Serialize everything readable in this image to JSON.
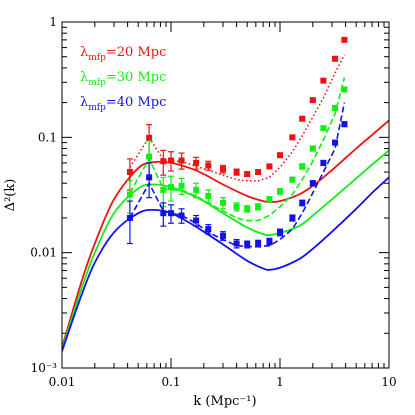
{
  "chart_data": {
    "type": "line",
    "xlabel": "k (Mpc⁻¹)",
    "ylabel": "Δ²(k)",
    "xscale": "log",
    "yscale": "log",
    "xlim": [
      0.01,
      10
    ],
    "ylim": [
      0.001,
      1
    ],
    "x_ticks": [
      "0.01",
      "0.1",
      "1",
      "10"
    ],
    "y_ticks": [
      "10⁻³",
      "0.01",
      "0.1",
      "1"
    ],
    "legend_position": "top-left",
    "series": [
      {
        "name": "λmfp=20 Mpc",
        "legend_main": "λ",
        "legend_sub": "mfp",
        "legend_tail": "=20 Mpc",
        "color": "#ee1111",
        "model_curve": {
          "x": [
            0.01,
            0.015,
            0.02,
            0.03,
            0.05,
            0.07,
            0.1,
            0.15,
            0.2,
            0.3,
            0.5,
            0.7,
            0.8,
            1,
            1.5,
            2,
            3,
            5,
            7,
            10
          ],
          "y": [
            0.0015,
            0.0055,
            0.012,
            0.029,
            0.054,
            0.061,
            0.06,
            0.054,
            0.048,
            0.039,
            0.031,
            0.028,
            0.0275,
            0.028,
            0.032,
            0.038,
            0.052,
            0.08,
            0.105,
            0.14
          ]
        },
        "sim_points": {
          "x": [
            0.042,
            0.063,
            0.085,
            0.1,
            0.125,
            0.17,
            0.22,
            0.3,
            0.4,
            0.5,
            0.63,
            0.8,
            1.0,
            1.3,
            1.6,
            2.0,
            2.5,
            3.2,
            3.9
          ],
          "y": [
            0.05,
            0.099,
            0.062,
            0.063,
            0.063,
            0.06,
            0.057,
            0.053,
            0.05,
            0.048,
            0.05,
            0.056,
            0.07,
            0.1,
            0.145,
            0.21,
            0.31,
            0.48,
            0.7
          ],
          "err": [
            0.015,
            0.03,
            0.015,
            0.012,
            0.01,
            0.007,
            0.005,
            0.004,
            0.003,
            0.002,
            0.002,
            0.002,
            0.002,
            0.003,
            0.004,
            0.005,
            0.007,
            0.01,
            0.012
          ]
        },
        "fit_points": {
          "x": [
            0.042,
            0.063,
            0.085,
            0.1,
            0.125,
            0.17,
            0.22,
            0.3,
            0.4,
            0.5,
            0.63,
            0.8,
            1.0,
            1.3,
            1.6,
            2.0,
            2.5,
            3.2,
            3.9
          ],
          "y": [
            0.055,
            0.1,
            0.064,
            0.062,
            0.062,
            0.056,
            0.052,
            0.047,
            0.043,
            0.042,
            0.042,
            0.045,
            0.055,
            0.075,
            0.103,
            0.15,
            0.22,
            0.36,
            0.52
          ]
        }
      },
      {
        "name": "λmfp=30 Mpc",
        "legend_main": "λ",
        "legend_sub": "mfp",
        "legend_tail": "=30 Mpc",
        "color": "#11ee11",
        "model_curve": {
          "x": [
            0.01,
            0.015,
            0.02,
            0.03,
            0.05,
            0.07,
            0.1,
            0.15,
            0.2,
            0.3,
            0.5,
            0.7,
            0.8,
            1,
            1.5,
            2,
            3,
            5,
            7,
            10
          ],
          "y": [
            0.00145,
            0.0048,
            0.01,
            0.022,
            0.036,
            0.039,
            0.037,
            0.032,
            0.028,
            0.022,
            0.0165,
            0.0145,
            0.0142,
            0.0148,
            0.017,
            0.021,
            0.029,
            0.044,
            0.058,
            0.077
          ]
        },
        "sim_points": {
          "x": [
            0.042,
            0.063,
            0.085,
            0.1,
            0.125,
            0.17,
            0.22,
            0.3,
            0.4,
            0.5,
            0.63,
            0.8,
            1.0,
            1.3,
            1.6,
            2.0,
            2.5,
            3.2,
            3.9
          ],
          "y": [
            0.032,
            0.068,
            0.035,
            0.037,
            0.038,
            0.035,
            0.031,
            0.027,
            0.025,
            0.024,
            0.025,
            0.029,
            0.034,
            0.043,
            0.056,
            0.08,
            0.12,
            0.18,
            0.26
          ],
          "err": [
            0.01,
            0.025,
            0.01,
            0.009,
            0.006,
            0.005,
            0.004,
            0.003,
            0.002,
            0.0015,
            0.0015,
            0.0015,
            0.0018,
            0.002,
            0.003,
            0.004,
            0.005,
            0.007,
            0.01
          ]
        },
        "fit_points": {
          "x": [
            0.042,
            0.063,
            0.085,
            0.1,
            0.125,
            0.17,
            0.22,
            0.3,
            0.4,
            0.5,
            0.63,
            0.8,
            1.0,
            1.3,
            1.6,
            2.0,
            2.5,
            3.2,
            3.9
          ],
          "y": [
            0.033,
            0.065,
            0.036,
            0.035,
            0.035,
            0.031,
            0.027,
            0.023,
            0.02,
            0.019,
            0.019,
            0.021,
            0.025,
            0.032,
            0.043,
            0.062,
            0.095,
            0.16,
            0.33
          ]
        }
      },
      {
        "name": "λmfp=40 Mpc",
        "legend_main": "λ",
        "legend_sub": "mfp",
        "legend_tail": "=40 Mpc",
        "color": "#1111ee",
        "model_curve": {
          "x": [
            0.01,
            0.015,
            0.02,
            0.03,
            0.05,
            0.07,
            0.1,
            0.15,
            0.2,
            0.3,
            0.5,
            0.7,
            0.8,
            1,
            1.5,
            2,
            3,
            5,
            7,
            10
          ],
          "y": [
            0.0014,
            0.0042,
            0.0082,
            0.015,
            0.022,
            0.0235,
            0.022,
            0.018,
            0.0152,
            0.0118,
            0.0085,
            0.0073,
            0.0071,
            0.0074,
            0.0088,
            0.0108,
            0.0152,
            0.024,
            0.033,
            0.045
          ]
        },
        "sim_points": {
          "x": [
            0.042,
            0.063,
            0.085,
            0.1,
            0.125,
            0.17,
            0.22,
            0.3,
            0.4,
            0.5,
            0.63,
            0.8,
            1.0,
            1.3,
            1.6,
            2.0,
            2.5,
            3.2,
            3.9
          ],
          "y": [
            0.02,
            0.045,
            0.022,
            0.022,
            0.021,
            0.019,
            0.016,
            0.014,
            0.012,
            0.0118,
            0.012,
            0.0125,
            0.015,
            0.02,
            0.027,
            0.04,
            0.06,
            0.09,
            0.13
          ],
          "err": [
            0.008,
            0.015,
            0.005,
            0.004,
            0.003,
            0.002,
            0.0015,
            0.0012,
            0.001,
            0.0008,
            0.0008,
            0.0008,
            0.001,
            0.0012,
            0.0015,
            0.002,
            0.003,
            0.004,
            0.006
          ]
        },
        "fit_points": {
          "x": [
            0.042,
            0.063,
            0.085,
            0.1,
            0.125,
            0.17,
            0.22,
            0.3,
            0.4,
            0.5,
            0.63,
            0.8,
            1.0,
            1.3,
            1.6,
            2.0,
            2.5,
            3.2,
            3.9
          ],
          "y": [
            0.02,
            0.04,
            0.023,
            0.022,
            0.021,
            0.018,
            0.015,
            0.013,
            0.0115,
            0.0113,
            0.0113,
            0.0115,
            0.013,
            0.016,
            0.022,
            0.033,
            0.05,
            0.08,
            0.2
          ]
        }
      }
    ]
  }
}
